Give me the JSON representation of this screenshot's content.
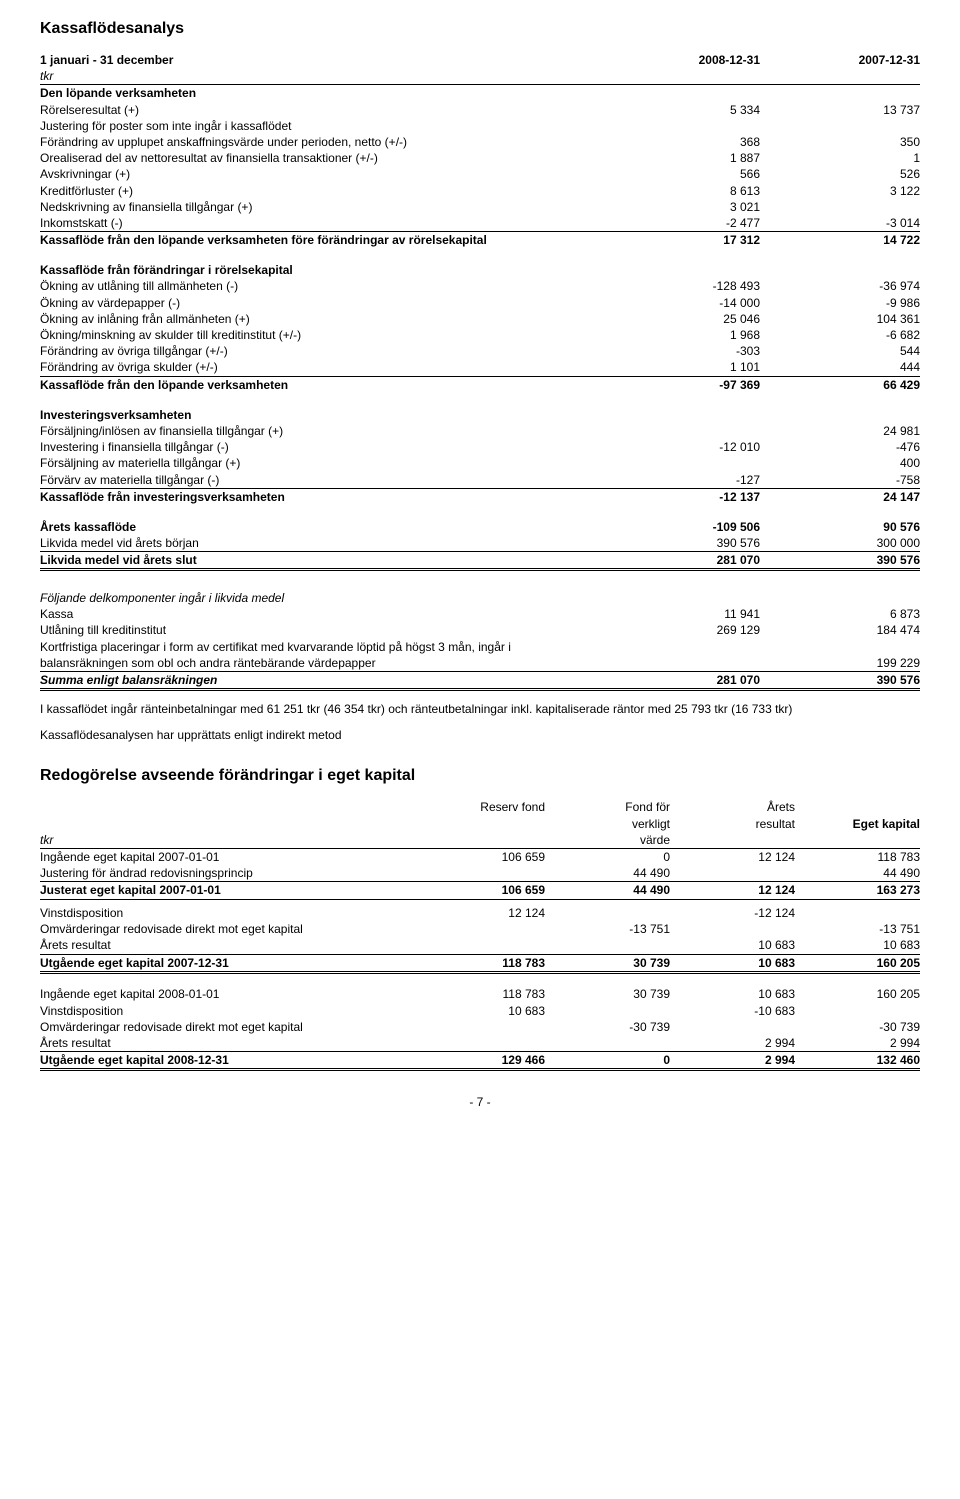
{
  "kassa": {
    "title": "Kassaflödesanalys",
    "period_label": "1 januari - 31 december",
    "col_a": "2008-12-31",
    "col_b": "2007-12-31",
    "tkr": "tkr",
    "sec_lopande": "Den löpande verksamheten",
    "rows_lopande": [
      {
        "label": "Rörelseresultat (+)",
        "a": "5 334",
        "b": "13 737"
      },
      {
        "label": "Justering för poster som inte ingår i kassaflödet",
        "a": "",
        "b": ""
      },
      {
        "label": "Förändring av upplupet anskaffningsvärde under perioden, netto (+/-)",
        "a": "368",
        "b": "350"
      },
      {
        "label": "Orealiserad del av nettoresultat av finansiella transaktioner (+/-)",
        "a": "1 887",
        "b": "1"
      },
      {
        "label": "Avskrivningar (+)",
        "a": "566",
        "b": "526"
      },
      {
        "label": "Kreditförluster (+)",
        "a": "8 613",
        "b": "3 122"
      },
      {
        "label": "Nedskrivning av finansiella tillgångar (+)",
        "a": "3 021",
        "b": ""
      },
      {
        "label": "Inkomstskatt (-)",
        "a": "-2 477",
        "b": "-3 014"
      }
    ],
    "sum_lopande": {
      "label": "Kassaflöde från den löpande verksamheten före förändringar av rörelsekapital",
      "a": "17 312",
      "b": "14 722"
    },
    "sec_forandr": "Kassaflöde från förändringar i rörelsekapital",
    "rows_forandr": [
      {
        "label": "Ökning av utlåning till allmänheten (-)",
        "a": "-128 493",
        "b": "-36 974"
      },
      {
        "label": "Ökning av värdepapper (-)",
        "a": "-14 000",
        "b": "-9 986"
      },
      {
        "label": "Ökning av inlåning från allmänheten (+)",
        "a": "25 046",
        "b": "104 361"
      },
      {
        "label": "Ökning/minskning av skulder till kreditinstitut (+/-)",
        "a": "1 968",
        "b": "-6 682"
      },
      {
        "label": "Förändring av övriga tillgångar (+/-)",
        "a": "-303",
        "b": "544"
      },
      {
        "label": "Förändring av övriga skulder (+/-)",
        "a": "1 101",
        "b": "444"
      }
    ],
    "sum_forandr": {
      "label": "Kassaflöde från den löpande verksamheten",
      "a": "-97 369",
      "b": "66 429"
    },
    "sec_invest": "Investeringsverksamheten",
    "rows_invest": [
      {
        "label": "Försäljning/inlösen av finansiella tillgångar (+)",
        "a": "",
        "b": "24 981"
      },
      {
        "label": "Investering i finansiella tillgångar (-)",
        "a": "-12 010",
        "b": "-476"
      },
      {
        "label": "Försäljning av materiella tillgångar (+)",
        "a": "",
        "b": "400"
      },
      {
        "label": "Förvärv av materiella tillgångar (-)",
        "a": "-127",
        "b": "-758"
      }
    ],
    "sum_invest": {
      "label": "Kassaflöde från investeringsverksamheten",
      "a": "-12 137",
      "b": "24 147"
    },
    "arets_kf": {
      "label": "Årets kassaflöde",
      "a": "-109 506",
      "b": "90 576"
    },
    "likvida_borjan": {
      "label": "Likvida medel vid årets början",
      "a": "390 576",
      "b": "300 000"
    },
    "likvida_slut": {
      "label": "Likvida medel vid årets slut",
      "a": "281 070",
      "b": "390 576"
    },
    "sec_delkomp": "Följande delkomponenter ingår i likvida medel",
    "rows_delkomp": [
      {
        "label": "Kassa",
        "a": "11 941",
        "b": "6 873"
      },
      {
        "label": "Utlåning till kreditinstitut",
        "a": "269 129",
        "b": "184 474"
      }
    ],
    "delkomp_note1": "Kortfristiga placeringar i form av certifikat med kvarvarande löptid på högst 3 mån, ingår i",
    "delkomp_note2": "balansräkningen som obl och andra räntebärande värdepapper",
    "delkomp_note_b": "199 229",
    "sum_delkomp": {
      "label": "Summa enligt balansräkningen",
      "a": "281 070",
      "b": "390 576"
    },
    "footnote1": "I kassaflödet ingår ränteinbetalningar med 61 251 tkr (46 354 tkr) och ränteutbetalningar inkl. kapitaliserade räntor med 25 793 tkr (16 733 tkr)",
    "footnote2": "Kassaflödesanalysen har upprättats enligt indirekt metod"
  },
  "equity": {
    "title": "Redogörelse avseende förändringar i eget kapital",
    "hdr": {
      "c1l1": "Reserv fond",
      "c2l1": "Fond för",
      "c2l2": "verkligt",
      "c2l3": "värde",
      "c3l1": "Årets",
      "c3l2": "resultat",
      "c4l1": "Eget kapital"
    },
    "tkr": "tkr",
    "rows1": [
      {
        "label": "Ingående eget kapital 2007-01-01",
        "a": "106 659",
        "b": "0",
        "c": "12 124",
        "d": "118 783"
      },
      {
        "label": "Justering för ändrad redovisningsprincip",
        "a": "",
        "b": "44 490",
        "c": "",
        "d": "44 490"
      }
    ],
    "sum1": {
      "label": "Justerat eget kapital 2007-01-01",
      "a": "106 659",
      "b": "44 490",
      "c": "12 124",
      "d": "163 273"
    },
    "rows2": [
      {
        "label": "Vinstdisposition",
        "a": "12 124",
        "b": "",
        "c": "-12 124",
        "d": ""
      },
      {
        "label": "Omvärderingar redovisade direkt mot eget kapital",
        "a": "",
        "b": "-13 751",
        "c": "",
        "d": "-13 751"
      },
      {
        "label": "Årets resultat",
        "a": "",
        "b": "",
        "c": "10 683",
        "d": "10 683"
      }
    ],
    "sum2": {
      "label": "Utgående eget kapital 2007-12-31",
      "a": "118 783",
      "b": "30 739",
      "c": "10 683",
      "d": "160 205"
    },
    "rows3": [
      {
        "label": "Ingående eget kapital 2008-01-01",
        "a": "118 783",
        "b": "30 739",
        "c": "10 683",
        "d": "160 205"
      },
      {
        "label": "Vinstdisposition",
        "a": "10 683",
        "b": "",
        "c": "-10 683",
        "d": ""
      },
      {
        "label": "Omvärderingar redovisade direkt mot eget kapital",
        "a": "",
        "b": "-30 739",
        "c": "",
        "d": "-30 739"
      },
      {
        "label": "Årets resultat",
        "a": "",
        "b": "",
        "c": "2 994",
        "d": "2 994"
      }
    ],
    "sum3": {
      "label": "Utgående eget kapital 2008-12-31",
      "a": "129 466",
      "b": "0",
      "c": "2 994",
      "d": "132 460"
    }
  },
  "page_no": "- 7 -"
}
